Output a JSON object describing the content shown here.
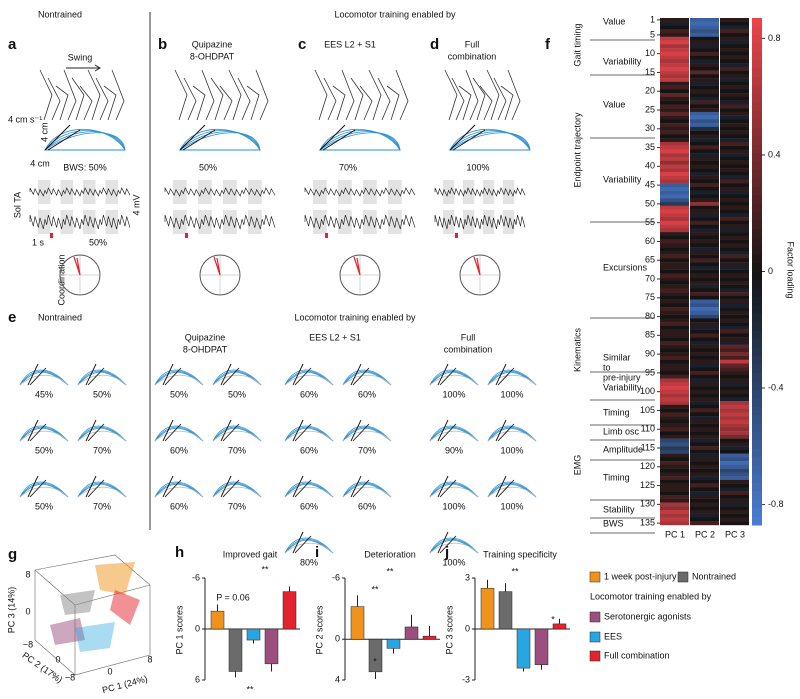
{
  "panels": {
    "a": {
      "letter": "a",
      "title": "Nontrained",
      "swing": "Swing",
      "speed": "4 cm s⁻¹",
      "scale_v": "4 cm",
      "scale_h": "4 cm",
      "bws": "BWS: 50%",
      "muscles": "Sol TA",
      "mv": "4 mV",
      "time": "1 s",
      "pct": "50%",
      "coord": "Coordination"
    },
    "header_top": "Locomotor training enabled by",
    "b": {
      "letter": "b",
      "title": "Quipazine",
      "title2": "8-OHDPAT",
      "pct": "50%"
    },
    "c": {
      "letter": "c",
      "title": "EES L2 + S1",
      "pct": "70%"
    },
    "d": {
      "letter": "d",
      "title": "Full",
      "title2": "combination",
      "pct": "100%"
    },
    "e": {
      "letter": "e",
      "nontrained": "Nontrained",
      "header": "Locomotor training enabled by",
      "quip": "Quipazine",
      "quip2": "8-OHDPAT",
      "ees": "EES L2 + S1",
      "full": "Full",
      "full2": "combination",
      "nontrained_pcts": [
        "45%",
        "50%",
        "50%",
        "70%",
        "50%",
        "70%"
      ],
      "quip_pcts": [
        "50%",
        "50%",
        "60%",
        "70%",
        "60%",
        "70%"
      ],
      "ees_pcts": [
        "60%",
        "60%",
        "60%",
        "70%",
        "60%",
        "60%",
        "80%"
      ],
      "full_pcts": [
        "100%",
        "100%",
        "90%",
        "100%",
        "100%",
        "100%",
        "100%"
      ]
    },
    "f": {
      "letter": "f",
      "groups": [
        "Gait timing",
        "Endpoint trajectory",
        "Kinematics",
        "EMG"
      ],
      "rows": [
        "Value",
        "Variability",
        "Value",
        "Variability",
        "Excursions",
        "Similar",
        "to",
        "pre-injury",
        "Variability",
        "Timing",
        "Limb osc",
        "Amplitude",
        "Timing",
        "Stability",
        "BWS"
      ]
    },
    "g": {
      "letter": "g",
      "x_label": "PC 1 (24%)",
      "y_label": "PC 2 (17%)",
      "z_label": "PC 3 (14%)",
      "tick_labels": [
        "8",
        "0",
        "−8",
        "0",
        "−8",
        "0",
        "8"
      ]
    },
    "h": {
      "letter": "h"
    },
    "i": {
      "letter": "i"
    },
    "j": {
      "letter": "j"
    },
    "legend": {
      "items": [
        {
          "name": "1 week post-injury",
          "color": "#f0931c"
        },
        {
          "name": "Nontrained",
          "color": "#6b6b6b"
        },
        {
          "name": "Serotonergic agonists",
          "color": "#9c4f7e"
        },
        {
          "name": "EES",
          "color": "#27a6e2"
        },
        {
          "name": "Full combination",
          "color": "#e3232d"
        }
      ],
      "subtitle": "Locomotor training enabled by"
    }
  },
  "chart_data": [
    {
      "type": "heatmap",
      "y_title": "Factor loading",
      "clim": [
        -0.87,
        0.87
      ],
      "cticks": [
        0.8,
        0.4,
        0,
        -0.4,
        -0.8
      ],
      "yticks": [
        1,
        5,
        10,
        15,
        20,
        25,
        30,
        35,
        40,
        45,
        50,
        55,
        60,
        65,
        70,
        75,
        80,
        85,
        90,
        95,
        100,
        105,
        110,
        115,
        120,
        125,
        130,
        135
      ],
      "series": [
        {
          "name": "PC 1",
          "values": [
            0.1,
            -0.1,
            0,
            0.2,
            0.1,
            0.7,
            0.8,
            0.6,
            0.7,
            0.8,
            0.7,
            0.6,
            0.7,
            0.8,
            0.7,
            0.6,
            0.7,
            0.1,
            0.2,
            0,
            0.3,
            0.1,
            0,
            0.2,
            0.1,
            0.3,
            0.1,
            0,
            0.2,
            0.1,
            0.2,
            0,
            0.1,
            0.6,
            0.7,
            0.8,
            0.6,
            0.7,
            0.5,
            0.7,
            0.6,
            0.8,
            0.7,
            0.6,
            -0.6,
            -0.7,
            -0.6,
            -0.7,
            -0.5,
            -0.3,
            0.7,
            0.8,
            0.7,
            0.6,
            0.8,
            0.7,
            0.6,
            0.1,
            0,
            0.2,
            0.1,
            0,
            0.1,
            0.2,
            0,
            0.1,
            0.1,
            0,
            0.2,
            0.1,
            0,
            0.1,
            0.2,
            0.1,
            0,
            0.1,
            0,
            0.2,
            0.1,
            0,
            0.1,
            0.2,
            0,
            0.1,
            0.1,
            0,
            0.2,
            0.1,
            0,
            0.1,
            0.2,
            0,
            0.1,
            0.1,
            0,
            0.2,
            0.6,
            0.7,
            0.8,
            0.7,
            0.6,
            0.7,
            0.6,
            0.1,
            0,
            0.2,
            0.1,
            0,
            0.1,
            0.2,
            0,
            0.1,
            -0.4,
            -0.5,
            -0.3,
            -0.4,
            0.1,
            0,
            0.2,
            0.1,
            0,
            0.1,
            0.2,
            0,
            0.1,
            0.1,
            0,
            0.2,
            0.1,
            0.6,
            0.5,
            0.7,
            0.6,
            0.7,
            0.6
          ]
        },
        {
          "name": "PC 2",
          "values": [
            -0.6,
            -0.7,
            -0.6,
            -0.5,
            -0.6,
            0,
            0.1,
            -0.1,
            0,
            0.2,
            0,
            -0.1,
            0.1,
            0,
            0.3,
            0,
            0.1,
            -0.1,
            0,
            0.1,
            0,
            -0.1,
            0.2,
            0,
            0.1,
            -0.6,
            -0.7,
            -0.5,
            -0.6,
            -0.2,
            0,
            0.1,
            -0.1,
            0,
            0.2,
            0,
            -0.1,
            0.1,
            0,
            0.1,
            0,
            -0.1,
            0.1,
            0,
            0.2,
            0,
            -0.1,
            0,
            0.1,
            0.5,
            0,
            0.1,
            -0.1,
            0,
            0.2,
            0,
            -0.1,
            0.1,
            0,
            0.1,
            0,
            -0.1,
            0.1,
            0,
            0.2,
            0,
            -0.1,
            0,
            0.1,
            0,
            0.1,
            -0.1,
            0,
            0.2,
            0,
            -0.6,
            -0.5,
            -0.7,
            -0.6,
            -0.4,
            0,
            0.1,
            -0.1,
            0,
            0.2,
            0,
            -0.1,
            0.1,
            0,
            0.1,
            0,
            0.1,
            -0.1,
            0,
            0.2,
            0,
            -0.1,
            0.1,
            0,
            0.1,
            0,
            0.1,
            -0.1,
            0,
            0.2,
            0,
            -0.1,
            0.1,
            0,
            0.1,
            0,
            0.1,
            -0.1,
            0,
            0.2,
            0,
            -0.1,
            0.1,
            0,
            0.1,
            0,
            0.1,
            -0.1,
            0,
            0.2,
            0,
            -0.1,
            0.1,
            0,
            0.1,
            0,
            0.1,
            -0.1,
            0,
            0.2
          ]
        },
        {
          "name": "PC 3",
          "values": [
            0.1,
            0,
            -0.1,
            0.2,
            0,
            0.1,
            -0.1,
            0,
            0.1,
            0,
            0.1,
            0,
            -0.1,
            0.2,
            0,
            0.1,
            -0.1,
            0,
            0.1,
            0,
            0.1,
            0,
            -0.1,
            0.2,
            0,
            0.1,
            -0.1,
            0,
            0.1,
            0,
            0.1,
            0,
            -0.1,
            0.2,
            0,
            0.1,
            -0.1,
            0,
            0.1,
            0,
            0.1,
            0,
            -0.1,
            0.2,
            0,
            0.1,
            -0.1,
            0,
            0.1,
            0,
            0.1,
            0,
            -0.1,
            0.2,
            0,
            0.1,
            -0.1,
            0,
            0.1,
            0,
            0.1,
            0,
            -0.1,
            0.2,
            0,
            0.1,
            -0.1,
            0,
            0.1,
            0,
            0.1,
            0,
            -0.1,
            0.2,
            0,
            0.1,
            -0.1,
            0,
            0.1,
            0,
            0.1,
            0,
            -0.1,
            0.2,
            0,
            0.1,
            -0.1,
            0.3,
            0.2,
            0.4,
            0.2,
            0.7,
            0.3,
            0.2,
            0.1,
            0,
            0.1,
            -0.1,
            0,
            0.1,
            0,
            -0.1,
            0.6,
            0.7,
            0.6,
            0.7,
            0.6,
            0.7,
            0.6,
            0.5,
            0.6,
            0.4,
            0,
            0.1,
            -0.1,
            0,
            -0.6,
            -0.5,
            -0.7,
            -0.6,
            -0.4,
            -0.5,
            -0.6,
            0.1,
            0,
            -0.1,
            0.2,
            0,
            0.1,
            -0.1,
            0,
            0.1,
            0,
            0.1,
            0
          ]
        }
      ]
    },
    {
      "type": "bar",
      "title": "Improved gait",
      "y_label": "PC 1 scores",
      "ylim": [
        6,
        -6
      ],
      "yticks": [
        -6,
        0,
        6
      ],
      "values": [
        -2.1,
        5,
        1.3,
        4.1,
        -4.4
      ],
      "errors": [
        0.8,
        0.7,
        0.4,
        0.9,
        0.6
      ],
      "colors": [
        "#f0931c",
        "#6b6b6b",
        "#27a6e2",
        "#9c4f7e",
        "#e3232d"
      ],
      "annotations": [
        "P = 0.06",
        "**",
        "**"
      ]
    },
    {
      "type": "bar",
      "title": "Deterioration",
      "y_label": "PC 2 scores",
      "ylim": [
        4,
        -6
      ],
      "yticks": [
        -6,
        0,
        4
      ],
      "values": [
        -3.2,
        3.2,
        0.9,
        -1.2,
        -0.3
      ],
      "errors": [
        1.1,
        0.7,
        0.5,
        1.2,
        1
      ],
      "colors": [
        "#f0931c",
        "#6b6b6b",
        "#27a6e2",
        "#9c4f7e",
        "#e3232d"
      ],
      "annotations": [
        "**",
        "**",
        "*"
      ]
    },
    {
      "type": "bar",
      "title": "Training specificity",
      "y_label": "PC 3 scores",
      "ylim": [
        -3,
        3
      ],
      "yticks": [
        3,
        0,
        -3
      ],
      "values": [
        2.4,
        2.2,
        -2.3,
        -2.1,
        0.3
      ],
      "errors": [
        0.5,
        0.5,
        0.2,
        0.3,
        0.3
      ],
      "colors": [
        "#f0931c",
        "#6b6b6b",
        "#27a6e2",
        "#9c4f7e",
        "#e3232d"
      ],
      "annotations": [
        "**",
        "*"
      ]
    }
  ]
}
